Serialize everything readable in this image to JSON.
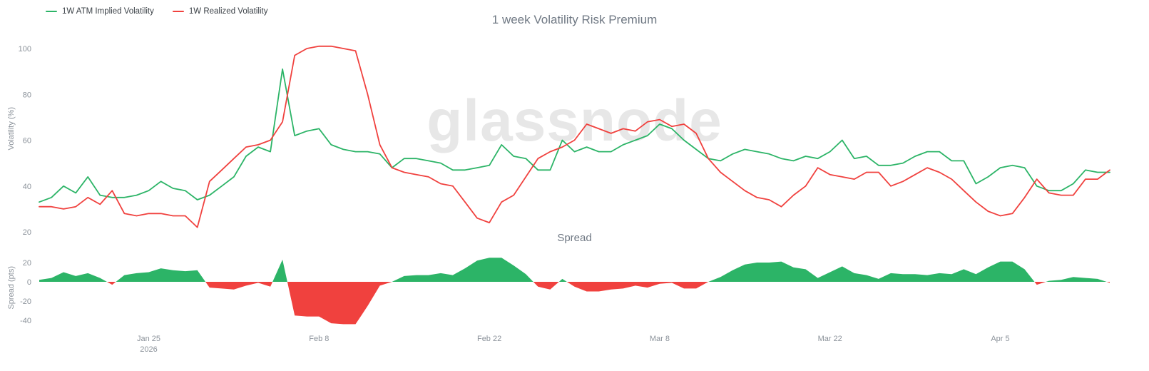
{
  "watermark": "glassnode",
  "chart_data": [
    {
      "type": "line",
      "title": "1 week Volatility Risk Premium",
      "ylabel": "Volatility (%)",
      "ylim": [
        20,
        100
      ],
      "yticks": [
        20,
        40,
        60,
        80,
        100
      ],
      "grid": false,
      "legend_position": "top-left",
      "x": [
        "Jan 16",
        "Jan 17",
        "Jan 18",
        "Jan 19",
        "Jan 20",
        "Jan 21",
        "Jan 22",
        "Jan 23",
        "Jan 24",
        "Jan 25",
        "Jan 26",
        "Jan 27",
        "Jan 28",
        "Jan 29",
        "Jan 30",
        "Jan 31",
        "Feb 1",
        "Feb 2",
        "Feb 3",
        "Feb 4",
        "Feb 5",
        "Feb 6",
        "Feb 7",
        "Feb 8",
        "Feb 9",
        "Feb 10",
        "Feb 11",
        "Feb 12",
        "Feb 13",
        "Feb 14",
        "Feb 15",
        "Feb 16",
        "Feb 17",
        "Feb 18",
        "Feb 19",
        "Feb 20",
        "Feb 21",
        "Feb 22",
        "Feb 23",
        "Feb 24",
        "Feb 25",
        "Feb 26",
        "Feb 27",
        "Feb 28",
        "Mar 1",
        "Mar 2",
        "Mar 3",
        "Mar 4",
        "Mar 5",
        "Mar 6",
        "Mar 7",
        "Mar 8",
        "Mar 9",
        "Mar 10",
        "Mar 11",
        "Mar 12",
        "Mar 13",
        "Mar 14",
        "Mar 15",
        "Mar 16",
        "Mar 17",
        "Mar 18",
        "Mar 19",
        "Mar 20",
        "Mar 21",
        "Mar 22",
        "Mar 23",
        "Mar 24",
        "Mar 25",
        "Mar 26",
        "Mar 27",
        "Mar 28",
        "Mar 29",
        "Mar 30",
        "Mar 31",
        "Apr 1",
        "Apr 2",
        "Apr 3",
        "Apr 4",
        "Apr 5",
        "Apr 6",
        "Apr 7",
        "Apr 8",
        "Apr 9",
        "Apr 10",
        "Apr 11",
        "Apr 12",
        "Apr 13",
        "Apr 14"
      ],
      "x_ticks": [
        {
          "label": "Jan 25",
          "sublabel": "2026",
          "index": 9
        },
        {
          "label": "Feb 8",
          "index": 23
        },
        {
          "label": "Feb 22",
          "index": 37
        },
        {
          "label": "Mar 8",
          "index": 51
        },
        {
          "label": "Mar 22",
          "index": 65
        },
        {
          "label": "Apr 5",
          "index": 79
        }
      ],
      "series": [
        {
          "name": "1W ATM Implied Volatility",
          "color": "#2cb467",
          "values": [
            33,
            35,
            40,
            37,
            44,
            36,
            35,
            35,
            36,
            38,
            42,
            39,
            38,
            34,
            36,
            40,
            44,
            53,
            57,
            55,
            91,
            62,
            64,
            65,
            58,
            56,
            55,
            55,
            54,
            48,
            52,
            52,
            51,
            50,
            47,
            47,
            48,
            49,
            58,
            53,
            52,
            47,
            47,
            60,
            55,
            57,
            55,
            55,
            58,
            60,
            62,
            67,
            65,
            60,
            56,
            52,
            51,
            54,
            56,
            55,
            54,
            52,
            51,
            53,
            52,
            55,
            60,
            52,
            53,
            49,
            49,
            50,
            53,
            55,
            55,
            51,
            51,
            41,
            44,
            48,
            49,
            48,
            40,
            38,
            38,
            41,
            47,
            46,
            46
          ]
        },
        {
          "name": "1W Realized Volatility",
          "color": "#f0413e",
          "values": [
            31,
            31,
            30,
            31,
            35,
            32,
            38,
            28,
            27,
            28,
            28,
            27,
            27,
            22,
            42,
            47,
            52,
            57,
            58,
            60,
            68,
            97,
            100,
            101,
            101,
            100,
            99,
            80,
            58,
            48,
            46,
            45,
            44,
            41,
            40,
            33,
            26,
            24,
            33,
            36,
            44,
            52,
            55,
            57,
            60,
            67,
            65,
            63,
            65,
            64,
            68,
            69,
            66,
            67,
            63,
            52,
            46,
            42,
            38,
            35,
            34,
            31,
            36,
            40,
            48,
            45,
            44,
            43,
            46,
            46,
            40,
            42,
            45,
            48,
            46,
            43,
            38,
            33,
            29,
            27,
            28,
            35,
            43,
            37,
            36,
            36,
            43,
            43,
            47
          ]
        }
      ]
    },
    {
      "type": "area",
      "title": "Spread",
      "ylabel": "Spread (pts)",
      "ylim": [
        -50,
        30
      ],
      "yticks": [
        -40,
        -20,
        0,
        20
      ],
      "grid": false,
      "note": "spread = implied minus realized",
      "positive_color": "#2cb467",
      "negative_color": "#f0413e",
      "values": [
        2,
        4,
        10,
        6,
        9,
        4,
        -3,
        7,
        9,
        10,
        14,
        12,
        11,
        12,
        -6,
        -7,
        -8,
        -4,
        -1,
        -5,
        23,
        -35,
        -36,
        -36,
        -43,
        -44,
        -44,
        -25,
        -4,
        0,
        6,
        7,
        7,
        9,
        7,
        14,
        22,
        25,
        25,
        17,
        8,
        -5,
        -8,
        3,
        -5,
        -10,
        -10,
        -8,
        -7,
        -4,
        -6,
        -2,
        -1,
        -7,
        -7,
        0,
        5,
        12,
        18,
        20,
        20,
        21,
        15,
        13,
        4,
        10,
        16,
        9,
        7,
        3,
        9,
        8,
        8,
        7,
        9,
        8,
        13,
        8,
        15,
        21,
        21,
        13,
        -3,
        1,
        2,
        5,
        4,
        3,
        -1
      ]
    }
  ],
  "colors": {
    "implied": "#2cb467",
    "realized": "#f0413e",
    "axis_text": "#8b929a",
    "title_text": "#707984",
    "watermark": "#e7e7e7"
  }
}
